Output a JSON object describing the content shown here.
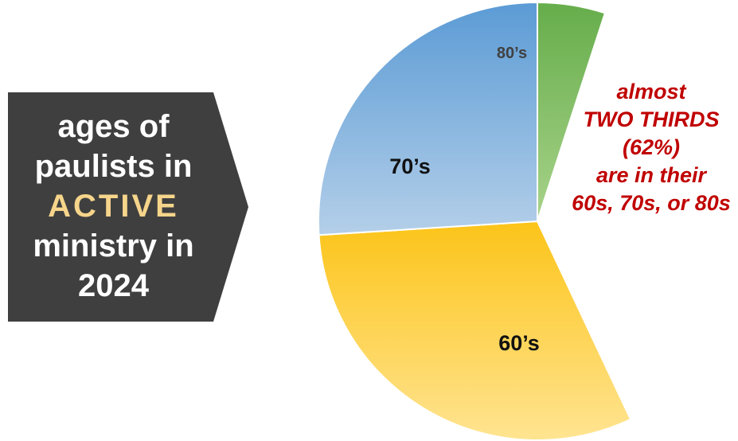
{
  "title": {
    "line1": "ages of",
    "line2": "paulists in",
    "line3": "ACTIVE",
    "line4": "ministry in",
    "line5": "2024"
  },
  "annotation": {
    "line1": "almost",
    "line2": "TWO THIRDS",
    "line3": "(62%)",
    "line4": "are in their",
    "line5": "60s, 70s, or 80s"
  },
  "chart_data": {
    "type": "pie",
    "slices": [
      {
        "label": "80’s",
        "value": 5,
        "color": "#7cbf56"
      },
      {
        "label": "",
        "value": 38,
        "color": "#ffffff"
      },
      {
        "label": "60’s",
        "value": 31,
        "color": "#fcd256"
      },
      {
        "label": "70’s",
        "value": 26,
        "color": "#8db6e0"
      }
    ],
    "colors": {
      "eighties_top": "#66ad4b",
      "eighties_bottom": "#a8d38a",
      "sixties_top": "#fcc419",
      "sixties_bottom": "#ffe491",
      "seventies_top": "#5b9bd5",
      "seventies_bottom": "#b4cfe9",
      "annotation": "#c00000",
      "panel": "#3f3f3f",
      "highlight": "#f6d58b"
    }
  }
}
